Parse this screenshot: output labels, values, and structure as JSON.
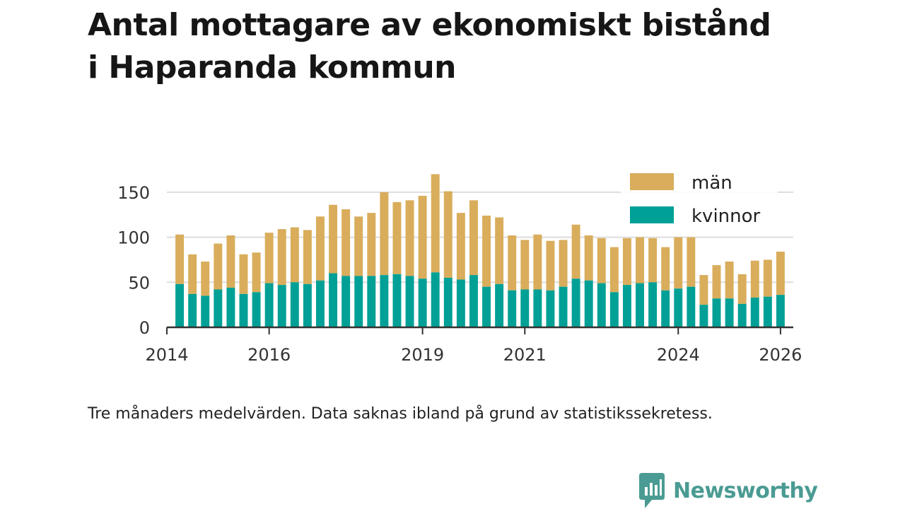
{
  "title_line1": "Antal mottagare av ekonomiskt bistånd",
  "title_line2": "i Haparanda kommun",
  "caption": "Tre månaders medelvärden. Data saknas ibland på grund av statistikssekretess.",
  "brand": {
    "name": "Newsworthy",
    "color": "#4a9b93",
    "icon": "newsworthy-logo-icon"
  },
  "chart_data": {
    "type": "bar",
    "stacked": true,
    "x_start": 2014.25,
    "x_step": 0.25,
    "xlim": [
      2014,
      2026.25
    ],
    "x_ticks": [
      2014,
      2016,
      2019,
      2021,
      2024,
      2026
    ],
    "x_tick_labels": [
      "2014",
      "2016",
      "2019",
      "2021",
      "2024",
      "2026"
    ],
    "ylim": [
      0,
      175
    ],
    "y_ticks": [
      0,
      50,
      100,
      150
    ],
    "y_tick_labels": [
      "0",
      "50",
      "100",
      "150"
    ],
    "grid": true,
    "legend_position": "top-right",
    "series": [
      {
        "name": "kvinnor",
        "color": "#00a096",
        "values": [
          48,
          37,
          35,
          42,
          44,
          37,
          39,
          49,
          47,
          50,
          48,
          52,
          60,
          57,
          57,
          57,
          58,
          59,
          57,
          54,
          61,
          55,
          53,
          58,
          45,
          48,
          41,
          42,
          42,
          41,
          45,
          54,
          52,
          49,
          39,
          47,
          49,
          50,
          41,
          43,
          45,
          25,
          32,
          32,
          26,
          33,
          34,
          36
        ]
      },
      {
        "name": "män",
        "color": "#d9ad5b",
        "values": [
          55,
          44,
          38,
          51,
          58,
          44,
          44,
          56,
          62,
          61,
          60,
          71,
          76,
          74,
          66,
          70,
          92,
          80,
          84,
          92,
          109,
          96,
          74,
          83,
          79,
          74,
          61,
          55,
          61,
          55,
          52,
          60,
          50,
          50,
          50,
          52,
          51,
          49,
          48,
          57,
          55,
          33,
          37,
          41,
          33,
          41,
          41,
          48
        ]
      }
    ],
    "legend": [
      {
        "name": "män",
        "color": "#d9ad5b"
      },
      {
        "name": "kvinnor",
        "color": "#00a096"
      }
    ]
  }
}
